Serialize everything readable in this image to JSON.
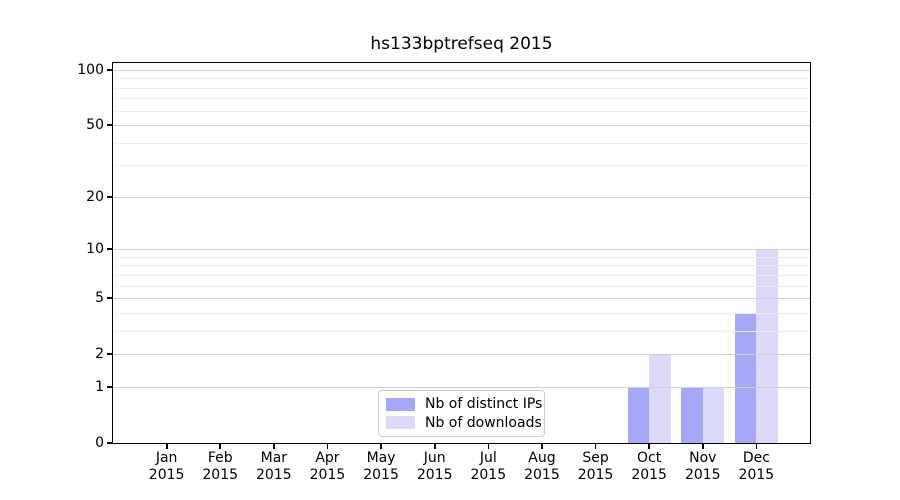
{
  "chart_data": {
    "type": "bar",
    "title": "hs133bptrefseq 2015",
    "categories": [
      "Jan",
      "Feb",
      "Mar",
      "Apr",
      "May",
      "Jun",
      "Jul",
      "Aug",
      "Sep",
      "Oct",
      "Nov",
      "Dec"
    ],
    "year": "2015",
    "series": [
      {
        "name": "Nb of distinct IPs",
        "color": "#a7a7f7",
        "values": [
          0,
          0,
          0,
          0,
          0,
          0,
          0,
          0,
          0,
          1,
          1,
          4
        ]
      },
      {
        "name": "Nb of downloads",
        "color": "#dadaf8",
        "values": [
          0,
          0,
          0,
          0,
          0,
          0,
          0,
          0,
          0,
          2,
          1,
          10
        ]
      }
    ],
    "xlabel": "",
    "ylabel": "",
    "yscale": "log1p",
    "ylim": [
      0,
      109
    ],
    "yticks": [
      0,
      1,
      2,
      5,
      10,
      20,
      50,
      100
    ],
    "yminorticks": [
      3,
      4,
      6,
      7,
      8,
      9,
      30,
      40,
      60,
      70,
      80,
      90
    ],
    "grid": "on",
    "legend_position": "lower center",
    "axis_color": "#000000",
    "major_grid_color": "#d0d0d0",
    "minor_grid_color": "#ebebeb"
  }
}
